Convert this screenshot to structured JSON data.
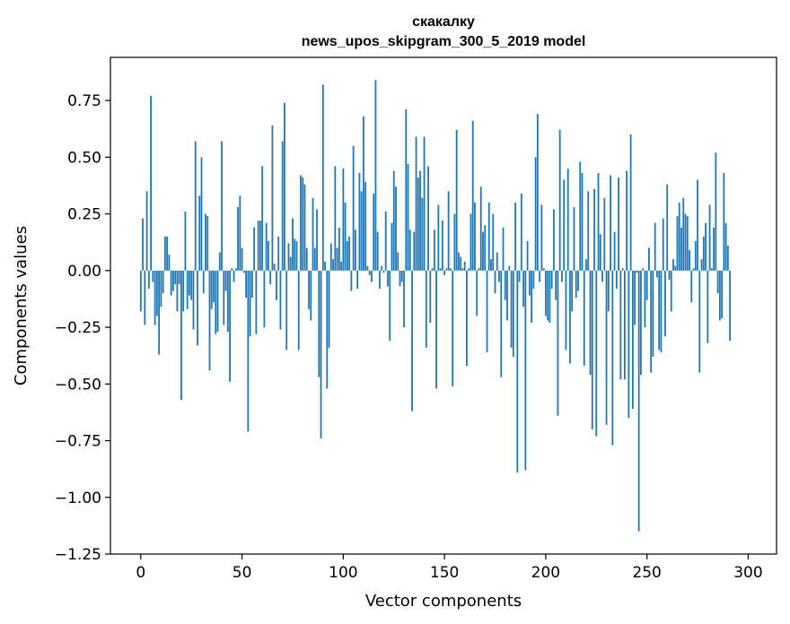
{
  "chart_data": {
    "type": "bar",
    "title": "скакалку",
    "subtitle": "news_upos_skipgram_300_5_2019 model",
    "xlabel": "Vector components",
    "ylabel": "Components values",
    "xlim": [
      -15,
      314
    ],
    "ylim": [
      -1.25,
      0.94
    ],
    "xticks": [
      0,
      50,
      100,
      150,
      200,
      250,
      300
    ],
    "yticks": [
      -1.25,
      -1.0,
      -0.75,
      -0.5,
      -0.25,
      0.0,
      0.25,
      0.5,
      0.75
    ],
    "xtick_labels": [
      "0",
      "50",
      "100",
      "150",
      "200",
      "250",
      "300"
    ],
    "ytick_labels": [
      "−1.25",
      "−1.00",
      "−0.75",
      "−0.50",
      "−0.25",
      "0.00",
      "0.25",
      "0.50",
      "0.75"
    ],
    "grid": false,
    "bar_color": "#1f77b4",
    "values": [
      -0.18,
      0.23,
      -0.24,
      0.35,
      -0.08,
      0.77,
      -0.05,
      -0.24,
      -0.2,
      -0.37,
      -0.16,
      -0.1,
      0.15,
      0.15,
      0.07,
      -0.11,
      -0.09,
      -0.06,
      -0.18,
      -0.06,
      -0.57,
      -0.18,
      0.26,
      -0.17,
      -0.11,
      -0.13,
      -0.26,
      0.57,
      -0.33,
      0.33,
      0.5,
      -0.1,
      0.25,
      0.24,
      -0.44,
      -0.17,
      -0.14,
      -0.28,
      -0.27,
      0.08,
      0.57,
      -0.24,
      -0.09,
      -0.27,
      -0.49,
      0.01,
      -0.05,
      0.01,
      0.28,
      0.33,
      0.1,
      -0.01,
      -0.12,
      -0.71,
      -0.29,
      -0.12,
      0.19,
      -0.28,
      0.22,
      0.22,
      0.46,
      -0.25,
      0.21,
      0.13,
      -0.06,
      0.64,
      0.03,
      -0.13,
      0.15,
      -0.26,
      0.57,
      0.74,
      -0.35,
      0.12,
      0.06,
      0.23,
      0.14,
      0.13,
      -0.35,
      0.42,
      0.41,
      0.38,
      0.1,
      -0.17,
      -0.22,
      0.32,
      0.1,
      0.27,
      -0.47,
      -0.74,
      0.82,
      0.04,
      -0.52,
      -0.34,
      0.12,
      0.05,
      0.46,
      0.1,
      0.19,
      0.04,
      0.45,
      0.3,
      0.13,
      0.15,
      -0.09,
      0.55,
      0.18,
      -0.08,
      0.43,
      0.35,
      0.68,
      0.39,
      0.02,
      -0.02,
      -0.05,
      0.34,
      0.84,
      0.17,
      -0.08,
      0.02,
      -0.01,
      0.26,
      -0.07,
      -0.31,
      0.21,
      0.44,
      0.37,
      0.08,
      -0.07,
      -0.05,
      -0.25,
      0.71,
      0.47,
      0.18,
      -0.62,
      0.17,
      0.59,
      0.41,
      0.44,
      0.32,
      0.59,
      -0.34,
      0.46,
      -0.23,
      0.01,
      0.18,
      -0.52,
      0.29,
      0.01,
      0.22,
      -0.02,
      0.01,
      0.35,
      0.01,
      -0.51,
      0.25,
      0.62,
      0.08,
      0.06,
      0.01,
      0.04,
      -0.42,
      0.01,
      0.25,
      0.66,
      0.3,
      -0.2,
      0.01,
      0.37,
      0.17,
      0.2,
      -0.36,
      0.3,
      0.05,
      0.25,
      -0.1,
      0.08,
      -0.05,
      -0.47,
      0.19,
      -0.13,
      -0.22,
      0.02,
      -0.34,
      -0.38,
      0.3,
      -0.89,
      -0.05,
      0.34,
      -0.16,
      -0.88,
      0.13,
      -0.11,
      -0.23,
      -0.08,
      0.5,
      0.69,
      -0.05,
      0.29,
      0.01,
      -0.2,
      -0.22,
      -0.23,
      -0.08,
      0.27,
      -0.13,
      -0.64,
      0.62,
      -0.05,
      0.4,
      -0.35,
      0.45,
      -0.41,
      -0.18,
      0.28,
      -0.12,
      -0.09,
      0.48,
      0.43,
      -0.42,
      0.05,
      0.35,
      -0.46,
      -0.7,
      0.36,
      -0.73,
      0.43,
      0.16,
      -0.05,
      0.32,
      -0.68,
      -0.18,
      0.42,
      -0.77,
      0.17,
      -0.08,
      0.41,
      -0.48,
      0.01,
      -0.48,
      0.44,
      -0.65,
      0.6,
      -0.61,
      -0.24,
      -0.01,
      -1.15,
      -0.46,
      0.01,
      -0.25,
      -0.13,
      0.1,
      -0.45,
      -0.38,
      0.21,
      -0.03,
      -0.35,
      -0.36,
      0.23,
      -0.29,
      0.38,
      -0.04,
      -0.18,
      0.05,
      0.02,
      0.24,
      0.3,
      0.19,
      0.32,
      0.25,
      0.24,
      0.09,
      -0.14,
      0.01,
      0.13,
      0.4,
      -0.45,
      0.05,
      0.15,
      0.21,
      -0.32,
      0.29,
      0.01,
      0.19,
      0.52,
      -0.1,
      -0.22,
      -0.21,
      0.43,
      0.21,
      0.11,
      -0.31
    ]
  }
}
